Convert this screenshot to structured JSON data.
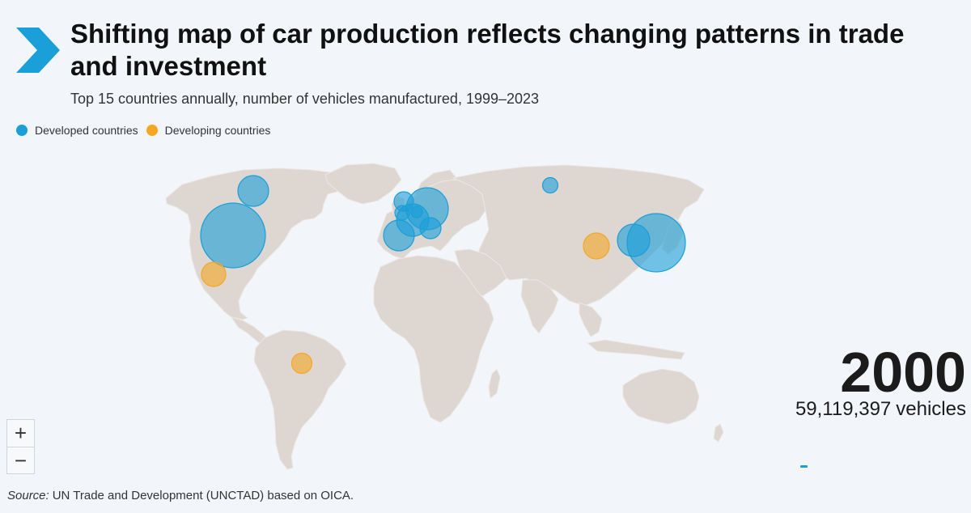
{
  "header": {
    "title": "Shifting map of car production reflects changing patterns in trade and investment",
    "subtitle": "Top 15 countries annually, number of vehicles manufactured, 1999–2023"
  },
  "legend": {
    "items": [
      {
        "label": "Developed countries",
        "color": "#1a9fd9"
      },
      {
        "label": "Developing countries",
        "color": "#f5a623"
      }
    ]
  },
  "status": {
    "year": "2000",
    "total": "59,119,397",
    "unit": "vehicles"
  },
  "zoom": {
    "in_label": "+",
    "out_label": "−"
  },
  "source": {
    "label": "Source:",
    "text": "UN Trade and Development (UNCTAD) based on OICA."
  },
  "colors": {
    "developed": "#1a9fd9",
    "developing": "#f5a623",
    "land": "#ddd6d1",
    "background": "#f2f6fb"
  },
  "icons": {
    "logo": "chevron-right-icon",
    "zoom_in": "plus-icon",
    "zoom_out": "minus-icon"
  },
  "map_data": {
    "type": "proportional-symbol-map",
    "bubbles": [
      {
        "location": "United States",
        "group": "developed",
        "lon": -98,
        "lat": 40
      },
      {
        "location": "Canada",
        "group": "developed",
        "lon": -81,
        "lat": 51
      },
      {
        "location": "Mexico",
        "group": "developing",
        "lon": -102,
        "lat": 23
      },
      {
        "location": "Brazil",
        "group": "developing",
        "lon": -51,
        "lat": -11
      },
      {
        "location": "United Kingdom",
        "group": "developed",
        "lon": -2,
        "lat": 54
      },
      {
        "location": "Germany",
        "group": "developed",
        "lon": 10,
        "lat": 51
      },
      {
        "location": "France",
        "group": "developed",
        "lon": 2,
        "lat": 47
      },
      {
        "location": "Belgium",
        "group": "developed",
        "lon": 4.5,
        "lat": 50.5
      },
      {
        "location": "Czechia",
        "group": "developed",
        "lon": 15.5,
        "lat": 49.8
      },
      {
        "location": "Italy",
        "group": "developed",
        "lon": 12.5,
        "lat": 43
      },
      {
        "location": "Spain",
        "group": "developed",
        "lon": -3.7,
        "lat": 40.4
      },
      {
        "location": "Russia",
        "group": "developed",
        "lon": 49,
        "lat": 56.5
      },
      {
        "location": "China",
        "group": "developing",
        "lon": 112,
        "lat": 34
      },
      {
        "location": "Republic of Korea",
        "group": "developed",
        "lon": 127.5,
        "lat": 36.5
      },
      {
        "location": "Japan",
        "group": "developed",
        "lon": 138,
        "lat": 36
      }
    ]
  }
}
